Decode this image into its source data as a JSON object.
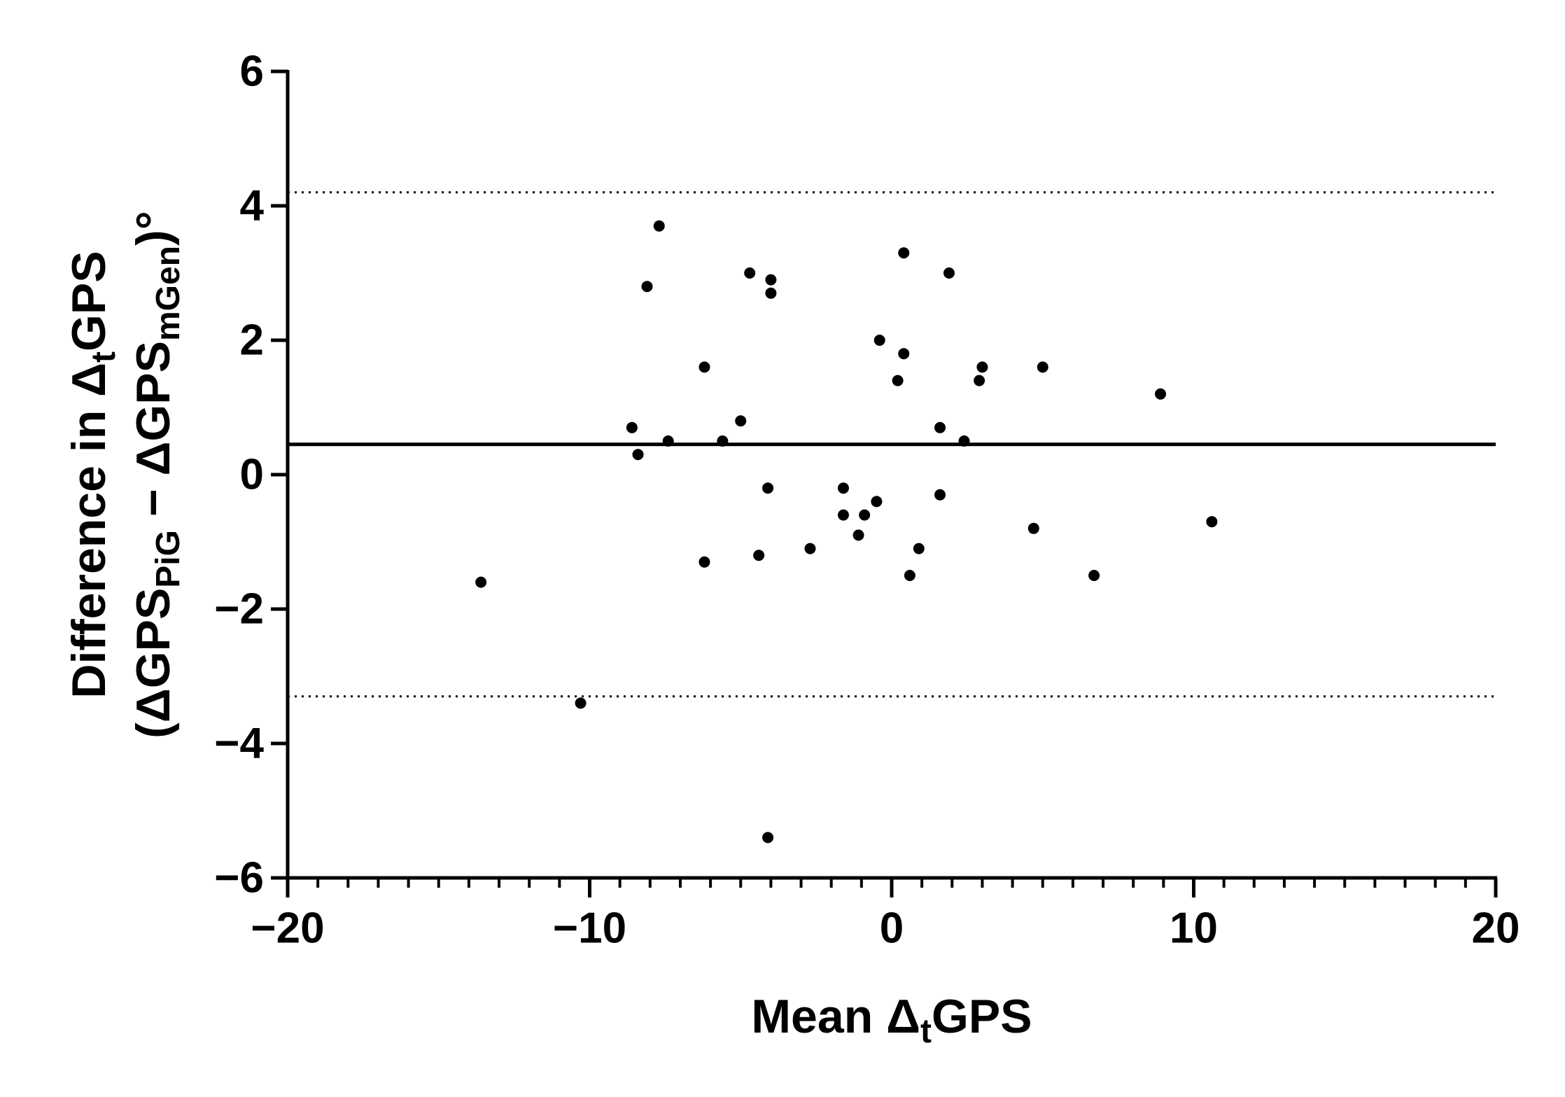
{
  "chart_data": {
    "type": "scatter",
    "xlabel": [
      "Mean Δ",
      "t",
      "GPS"
    ],
    "ylabel": [
      [
        "Difference in Δ",
        "t",
        "GPS"
      ],
      [
        "(ΔGPS",
        "PiG",
        " − ΔGPS",
        "mGen",
        ")°"
      ]
    ],
    "xlim": [
      -20,
      20
    ],
    "xticks": [
      {
        "value": -20,
        "label": "−20"
      },
      {
        "value": -10,
        "label": "−10"
      },
      0,
      10,
      20
    ],
    "ylim": [
      -6,
      6
    ],
    "yticks": [
      {
        "value": -6,
        "label": "−6"
      },
      {
        "value": -4,
        "label": "−4"
      },
      {
        "value": -2,
        "label": "−2"
      },
      0,
      2,
      4,
      6
    ],
    "color": "#000000",
    "reference_lines": [
      {
        "value": 4.2,
        "style": "dotted"
      },
      {
        "value": 0.45,
        "style": "solid"
      },
      {
        "value": -3.3,
        "style": "dotted"
      }
    ],
    "x": [
      -7.7,
      -8.1,
      -4.7,
      -4.0,
      -4.0,
      0.4,
      1.9,
      -0.4,
      0.4,
      -6.2,
      0.2,
      3.0,
      2.9,
      5.0,
      8.9,
      -8.6,
      -5.0,
      -7.4,
      -5.6,
      -8.4,
      1.6,
      2.4,
      -4.1,
      -1.6,
      -0.5,
      1.6,
      -1.6,
      -0.9,
      -1.1,
      -2.7,
      0.9,
      4.7,
      10.6,
      -6.2,
      -4.4,
      0.6,
      6.7,
      -13.6,
      -10.3,
      -4.1
    ],
    "values": [
      3.7,
      2.8,
      3.0,
      2.9,
      2.7,
      3.3,
      3.0,
      2.0,
      1.8,
      1.6,
      1.4,
      1.6,
      1.4,
      1.6,
      1.2,
      0.7,
      0.8,
      0.5,
      0.5,
      0.3,
      0.7,
      0.5,
      -0.2,
      -0.2,
      -0.4,
      -0.3,
      -0.6,
      -0.6,
      -0.9,
      -1.1,
      -1.1,
      -0.8,
      -0.7,
      -1.3,
      -1.2,
      -1.5,
      -1.5,
      -1.6,
      -3.4,
      -5.4
    ]
  }
}
